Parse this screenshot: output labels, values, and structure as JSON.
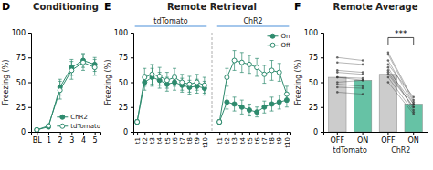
{
  "chart_data": [
    {
      "type": "line",
      "title": "Conditioning",
      "annotations": [
        {
          "text": "D"
        }
      ],
      "ylabel": "Freezing (%)",
      "categories": [
        "BL",
        "1",
        "2",
        "3",
        "4",
        "5"
      ],
      "series": [
        {
          "name": "ChR2",
          "color": "#2e8b6e",
          "marker": "circle",
          "line_style": "solid",
          "values": [
            2,
            5,
            45,
            65,
            72,
            68
          ],
          "errors": [
            1,
            2,
            8,
            8,
            7,
            7
          ]
        },
        {
          "name": "tdTomato",
          "color": "#2e8b6e",
          "marker": "open-circle",
          "line_style": "solid",
          "values": [
            2,
            6,
            42,
            62,
            70,
            65
          ],
          "errors": [
            1,
            2,
            9,
            9,
            8,
            8
          ]
        }
      ],
      "ylim": [
        0,
        100
      ],
      "yticks": [
        0,
        25,
        50,
        75,
        100
      ],
      "grid": false,
      "legend": "lower right"
    },
    {
      "type": "line",
      "title": "Remote Retrieval",
      "annotations": [
        {
          "text": "E"
        }
      ],
      "ylabel": "Freezing (%)",
      "sections": [
        {
          "text": "tdTomato",
          "color": "#4a90d9"
        },
        {
          "text": "ChR2",
          "color": "#4a90d9"
        }
      ],
      "categories": [
        "t1",
        "t2",
        "t3",
        "t4",
        "t5",
        "t6",
        "t7",
        "t8",
        "t9",
        "t10",
        null,
        "t1",
        "t2",
        "t3",
        "t4",
        "t5",
        "t6",
        "t7",
        "t8",
        "t9",
        "t10"
      ],
      "series": [
        {
          "name": "On",
          "color": "#2e8b6e",
          "marker": "circle",
          "line_style": "solid",
          "values": [
            10,
            50,
            55,
            52,
            48,
            50,
            47,
            45,
            46,
            44,
            null,
            10,
            30,
            28,
            25,
            22,
            20,
            25,
            28,
            30,
            32
          ],
          "errors": [
            2,
            8,
            9,
            8,
            7,
            8,
            7,
            7,
            7,
            7,
            null,
            2,
            7,
            7,
            7,
            6,
            5,
            6,
            7,
            7,
            7
          ]
        },
        {
          "name": "Off",
          "color": "#2e8b6e",
          "marker": "open-circle",
          "line_style": "solid",
          "values": [
            10,
            55,
            58,
            56,
            52,
            55,
            50,
            48,
            50,
            47,
            null,
            10,
            55,
            72,
            70,
            68,
            65,
            58,
            62,
            60,
            38
          ],
          "errors": [
            2,
            9,
            10,
            9,
            8,
            9,
            8,
            8,
            8,
            8,
            null,
            2,
            9,
            10,
            10,
            9,
            9,
            9,
            10,
            9,
            8
          ]
        }
      ],
      "ylim": [
        0,
        100
      ],
      "yticks": [
        0,
        25,
        50,
        75,
        100
      ],
      "grid": false,
      "legend": "upper right"
    },
    {
      "type": "bar",
      "title": "Remote Average",
      "annotations": [
        {
          "text": "F"
        }
      ],
      "ylabel": "Freezing (%)",
      "categories": [
        "OFF",
        "ON",
        "OFF",
        "ON"
      ],
      "values": [
        55,
        52,
        58,
        28
      ],
      "colors": [
        "#cccccc",
        "#66c2a5",
        "#cccccc",
        "#66c2a5"
      ],
      "group_labels": [
        "tdTomato",
        "ChR2"
      ],
      "paired_values": [
        [
          [
            55,
            52
          ],
          [
            60,
            58
          ],
          [
            45,
            44
          ],
          [
            70,
            68
          ],
          [
            50,
            52
          ],
          [
            48,
            46
          ],
          [
            62,
            60
          ],
          [
            40,
            38
          ],
          [
            75,
            72
          ],
          [
            55,
            54
          ]
        ],
        [
          [
            55,
            20
          ],
          [
            60,
            25
          ],
          [
            72,
            28
          ],
          [
            65,
            22
          ],
          [
            78,
            30
          ],
          [
            50,
            18
          ],
          [
            68,
            35
          ],
          [
            58,
            25
          ],
          [
            80,
            32
          ],
          [
            62,
            28
          ]
        ]
      ],
      "significance": {
        "text": "***",
        "between": [
          2,
          3
        ],
        "y": 95,
        "y_start": 88
      },
      "ylim": [
        0,
        100
      ],
      "yticks": [
        0,
        25,
        50,
        75,
        100
      ],
      "grid": false
    }
  ]
}
